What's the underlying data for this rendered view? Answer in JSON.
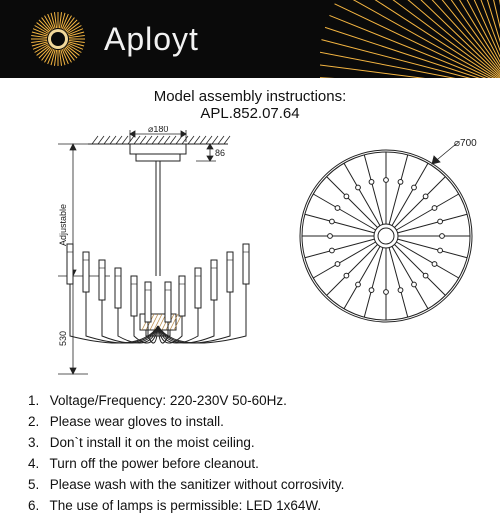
{
  "header": {
    "brand": "Aployt",
    "bg": "#0a0a0a",
    "logo_burst_color": "#f5b642",
    "logo_center_color": "#f2d89a",
    "ray_color": "#f5b642"
  },
  "title": {
    "line1": "Model assembly instructions:",
    "line2": "APL.852.07.64"
  },
  "diagrams": {
    "stroke": "#222222",
    "fill": "#ffffff",
    "hatch": "#b88a4a",
    "side": {
      "mount_width_label": "⌀180",
      "mount_height_label": "86",
      "vertical_label": "Adjustable",
      "body_height_label": "530"
    },
    "top": {
      "outer_diameter_label": "⌀700",
      "spokes": 24
    }
  },
  "instructions": [
    "Voltage/Frequency: 220-230V 50-60Hz.",
    "Please wear gloves to install.",
    "Don`t install it on the moist ceiling.",
    "Turn off the power before cleanout.",
    "Please wash with the sanitizer without corrosivity.",
    "The use of lamps is permissible: LED 1x64W."
  ]
}
